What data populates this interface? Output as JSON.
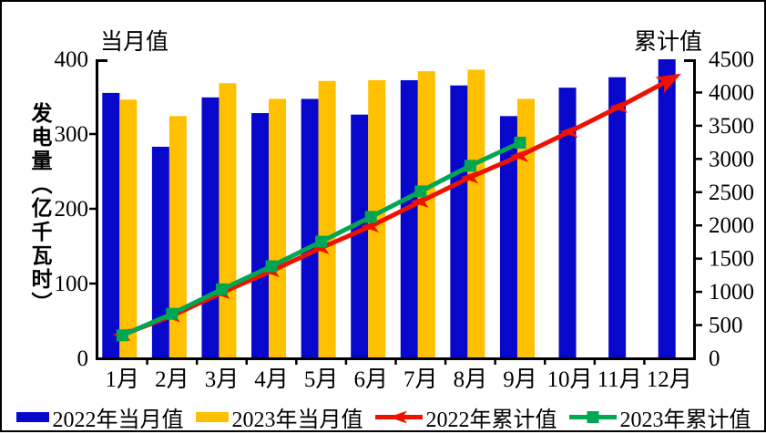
{
  "titles": {
    "left_axis_unit": "当月值",
    "right_axis_unit": "累计值",
    "y_axis_label": "发电量（亿千瓦时）"
  },
  "chart_data": {
    "type": "bar+line combo, dual axis",
    "categories": [
      "1月",
      "2月",
      "3月",
      "4月",
      "5月",
      "6月",
      "7月",
      "8月",
      "9月",
      "10月",
      "11月",
      "12月"
    ],
    "left_axis": {
      "title": "当月值",
      "min": 0,
      "max": 400,
      "step": 100,
      "ticks": [
        0,
        100,
        200,
        300,
        400
      ]
    },
    "right_axis": {
      "title": "累计值",
      "min": 0,
      "max": 4500,
      "step": 500,
      "ticks": [
        0,
        500,
        1000,
        1500,
        2000,
        2500,
        3000,
        3500,
        4000,
        4500
      ]
    },
    "grid": false,
    "legend_position": "bottom",
    "series": [
      {
        "name": "2022年当月值",
        "type": "bar",
        "axis": "left",
        "color": "#0808CC",
        "values": [
          355,
          283,
          349,
          328,
          347,
          326,
          372,
          365,
          324,
          362,
          376,
          400
        ]
      },
      {
        "name": "2023年当月值",
        "type": "bar",
        "axis": "left",
        "color": "#FFC000",
        "values": [
          346,
          324,
          368,
          347,
          371,
          372,
          384,
          386,
          347
        ]
      },
      {
        "name": "2022年累计值",
        "type": "line",
        "marker": "left-arrow",
        "axis": "right",
        "color": "#EE1100",
        "values": [
          355,
          638,
          987,
          1315,
          1662,
          1988,
          2360,
          2725,
          3049,
          3411,
          3787,
          4187
        ]
      },
      {
        "name": "2023年累计值",
        "type": "line",
        "marker": "square",
        "axis": "right",
        "color": "#00A651",
        "values": [
          346,
          670,
          1038,
          1385,
          1756,
          2128,
          2512,
          2898,
          3245
        ]
      }
    ]
  }
}
